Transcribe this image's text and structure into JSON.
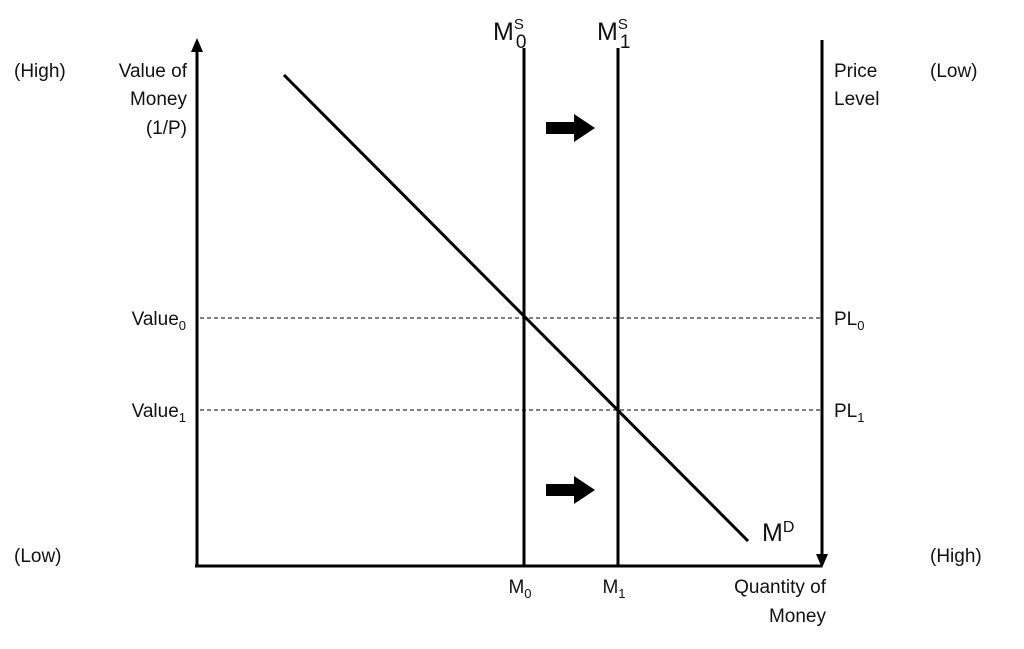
{
  "colors": {
    "ink": "#000000",
    "background": "#ffffff"
  },
  "left_axis": {
    "label_lines": [
      "Value of",
      "Money",
      "(1/P)"
    ],
    "top_note": "(High)",
    "bottom_note": "(Low)",
    "ticks": [
      {
        "base": "Value",
        "sub": "0"
      },
      {
        "base": "Value",
        "sub": "1"
      }
    ]
  },
  "right_axis": {
    "label_lines": [
      "Price",
      "Level"
    ],
    "top_note": "(Low)",
    "bottom_note": "(High)",
    "direction": "downward",
    "ticks": [
      {
        "base": "PL",
        "sub": "0"
      },
      {
        "base": "PL",
        "sub": "1"
      }
    ]
  },
  "x_axis": {
    "label_lines": [
      "Quantity of",
      "Money"
    ],
    "ticks": [
      {
        "base": "M",
        "sub": "0"
      },
      {
        "base": "M",
        "sub": "1"
      }
    ]
  },
  "curves": {
    "supply_0": {
      "base": "M",
      "sup": "S",
      "sub": "0",
      "type": "vertical"
    },
    "supply_1": {
      "base": "M",
      "sup": "S",
      "sub": "1",
      "type": "vertical"
    },
    "demand": {
      "base": "M",
      "sup": "D",
      "type": "downward-sloping"
    }
  },
  "arrows": {
    "count": 2,
    "direction": "right",
    "icon": "right-arrow-icon"
  },
  "guides": {
    "style": "dashed",
    "count": 2
  }
}
